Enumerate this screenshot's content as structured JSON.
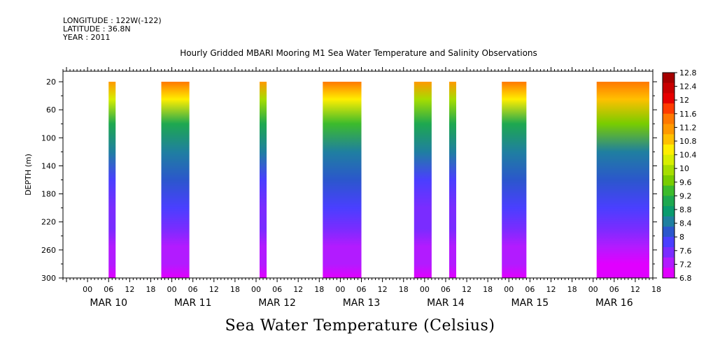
{
  "meta": {
    "longitude": "LONGITUDE : 122W(-122)",
    "latitude": "LATITUDE : 36.8N",
    "year": "YEAR : 2011"
  },
  "chart_data": {
    "type": "heatmap",
    "title": "Hourly Gridded MBARI Mooring M1 Sea Water Temperature and Salinity Observations",
    "xlabel": "",
    "ylabel": "DEPTH (m)",
    "colorbar_label": "Sea Water Temperature (Celsius)",
    "x_range_hours": [
      -7,
      161
    ],
    "x_hour_ticks": [
      "00",
      "06",
      "12",
      "18",
      "00",
      "06",
      "12",
      "18",
      "00",
      "06",
      "12",
      "18",
      "00",
      "06",
      "12",
      "18",
      "00",
      "06",
      "12",
      "18",
      "00",
      "06",
      "12",
      "18",
      "00",
      "06",
      "12",
      "18"
    ],
    "x_day_labels": [
      "MAR 10",
      "MAR 11",
      "MAR 12",
      "MAR 13",
      "MAR 14",
      "MAR 15",
      "MAR 16"
    ],
    "y_ticks": [
      20,
      60,
      100,
      140,
      180,
      220,
      260,
      300
    ],
    "ylim": [
      300,
      5
    ],
    "y_inverted": true,
    "colorbar_levels": [
      12.8,
      12.4,
      12,
      11.6,
      11.2,
      10.8,
      10.4,
      10,
      9.6,
      9.2,
      8.8,
      8.4,
      8,
      7.6,
      7.2,
      6.8
    ],
    "colorbar_colors": [
      "#a50000",
      "#c80000",
      "#e60000",
      "#ff3c00",
      "#ff7800",
      "#ff9900",
      "#ffc000",
      "#ffee00",
      "#d7ee00",
      "#a6dd00",
      "#78cc00",
      "#3cbb2c",
      "#1ea850",
      "#0a9b6e",
      "#1f7fa0",
      "#2b57cc",
      "#4a3fff",
      "#7a2cff",
      "#b21bff",
      "#e000ff"
    ],
    "data_blocks_hours": [
      {
        "start": 6,
        "end": 8,
        "profile": [
          11.2,
          10.2,
          9.0,
          8.3,
          7.9,
          7.6,
          7.45,
          7.35,
          7.2,
          7.05
        ]
      },
      {
        "start": 21,
        "end": 29,
        "profile": [
          11.6,
          10.4,
          9.1,
          8.4,
          8.0,
          7.7,
          7.5,
          7.35,
          7.15,
          7.0
        ]
      },
      {
        "start": 49,
        "end": 51,
        "profile": [
          11.2,
          10.0,
          8.9,
          8.3,
          7.9,
          7.6,
          7.45,
          7.35,
          7.2,
          7.05
        ]
      },
      {
        "start": 67,
        "end": 78,
        "profile": [
          11.6,
          10.6,
          9.3,
          8.5,
          8.0,
          7.7,
          7.5,
          7.35,
          7.15,
          6.95
        ]
      },
      {
        "start": 93,
        "end": 98,
        "profile": [
          11.2,
          10.0,
          8.9,
          8.3,
          7.9,
          7.6,
          7.45,
          7.35,
          7.2,
          7.05
        ]
      },
      {
        "start": 103,
        "end": 105,
        "profile": [
          11.2,
          10.0,
          8.9,
          8.3,
          7.9,
          7.6,
          7.45,
          7.35,
          7.2,
          7.05
        ]
      },
      {
        "start": 118,
        "end": 125,
        "profile": [
          11.4,
          10.4,
          9.2,
          8.4,
          8.0,
          7.7,
          7.5,
          7.35,
          7.15,
          7.0
        ]
      },
      {
        "start": 145,
        "end": 160,
        "profile": [
          11.6,
          10.8,
          9.6,
          8.6,
          8.1,
          7.8,
          7.55,
          7.35,
          7.1,
          6.9
        ]
      }
    ],
    "profile_depths": [
      20,
      45,
      80,
      120,
      160,
      200,
      230,
      255,
      280,
      300
    ]
  }
}
